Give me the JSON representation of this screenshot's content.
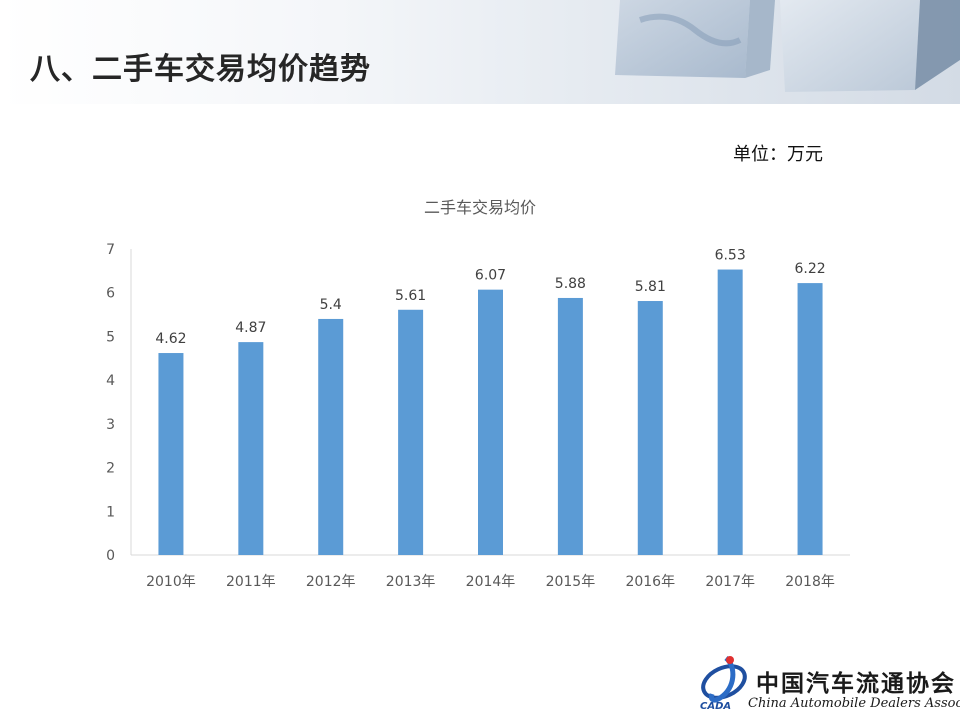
{
  "slide": {
    "title": "八、二手车交易均价趋势",
    "unit": "单位：万元"
  },
  "colors": {
    "bar": "#5b9bd5",
    "axis_text": "#595959",
    "grid_axis": "#d9d9d9"
  },
  "chart_data": {
    "type": "bar",
    "title": "二手车交易均价",
    "xlabel": "",
    "ylabel": "",
    "categories": [
      "2010年",
      "2011年",
      "2012年",
      "2013年",
      "2014年",
      "2015年",
      "2016年",
      "2017年",
      "2018年"
    ],
    "values": [
      4.62,
      4.87,
      5.4,
      5.61,
      6.07,
      5.88,
      5.81,
      6.53,
      6.22
    ],
    "value_labels": [
      "4.62",
      "4.87",
      "5.4",
      "5.61",
      "6.07",
      "5.88",
      "5.81",
      "6.53",
      "6.22"
    ],
    "ylim": [
      0,
      7
    ],
    "yticks": [
      0,
      1,
      2,
      3,
      4,
      5,
      6,
      7
    ],
    "grid": false,
    "legend": "none"
  },
  "logo": {
    "name_cn": "中国汽车流通协会",
    "name_en": "China Automobile Dealers Association",
    "abbr": "CADA"
  }
}
